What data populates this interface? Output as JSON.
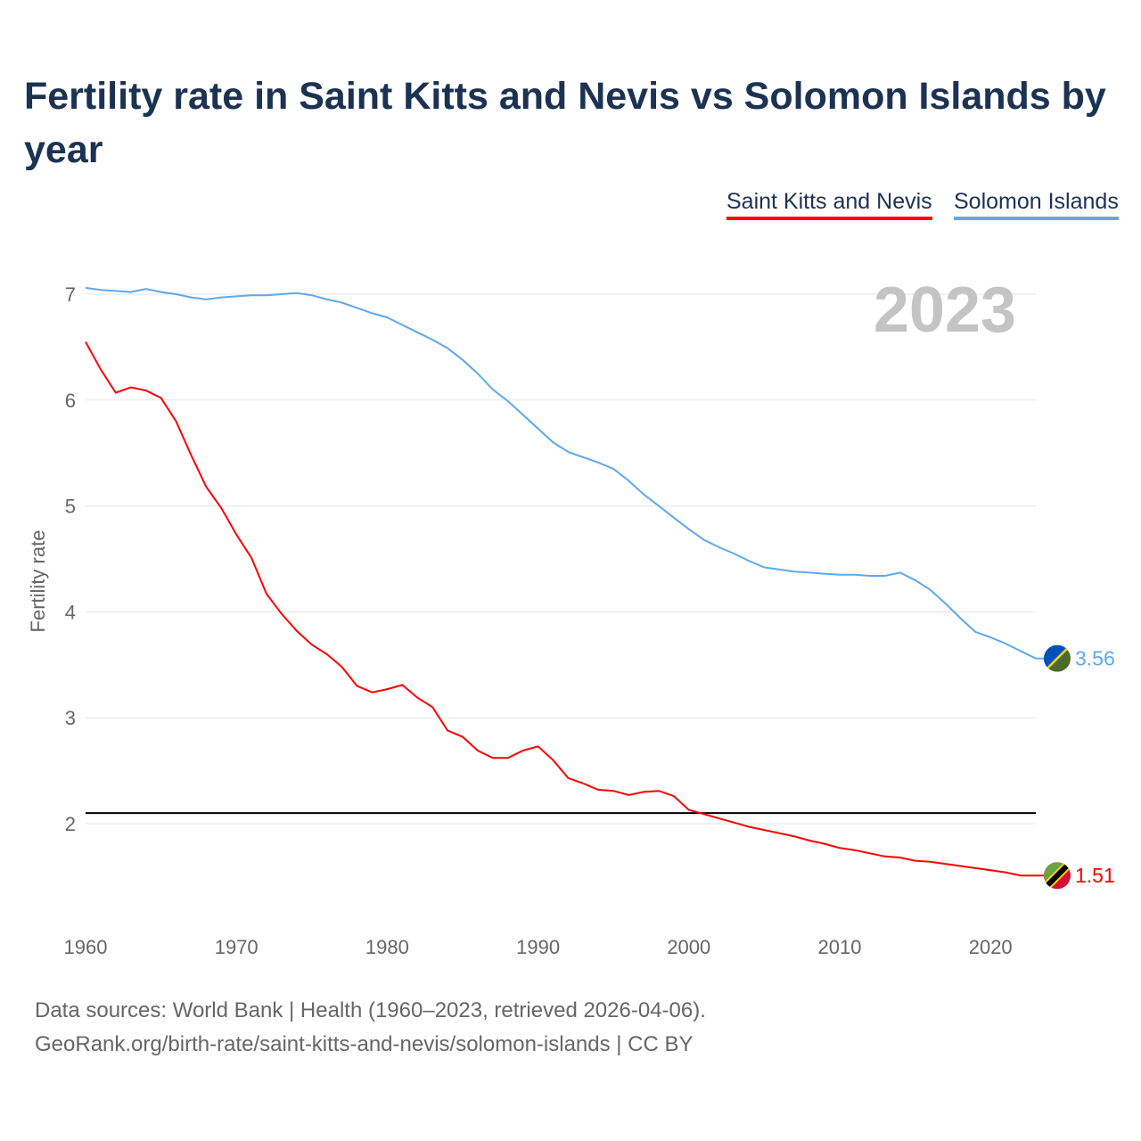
{
  "chart_data": {
    "type": "line",
    "title": "Fertility rate in Saint Kitts and Nevis vs Solomon Islands by year",
    "xlabel": "",
    "ylabel": "Fertility rate",
    "xlim": [
      1960,
      2023
    ],
    "ylim": [
      1.3,
      7.1
    ],
    "x_ticks": [
      1960,
      1970,
      1980,
      1990,
      2000,
      2010,
      2020
    ],
    "y_ticks": [
      2,
      3,
      4,
      5,
      6,
      7
    ],
    "grid": true,
    "legend_position": "top-right",
    "year_label": "2023",
    "reference_line": 2.1,
    "x": [
      1960,
      1961,
      1962,
      1963,
      1964,
      1965,
      1966,
      1967,
      1968,
      1969,
      1970,
      1971,
      1972,
      1973,
      1974,
      1975,
      1976,
      1977,
      1978,
      1979,
      1980,
      1981,
      1982,
      1983,
      1984,
      1985,
      1986,
      1987,
      1988,
      1989,
      1990,
      1991,
      1992,
      1993,
      1994,
      1995,
      1996,
      1997,
      1998,
      1999,
      2000,
      2001,
      2002,
      2003,
      2004,
      2005,
      2006,
      2007,
      2008,
      2009,
      2010,
      2011,
      2012,
      2013,
      2014,
      2015,
      2016,
      2017,
      2018,
      2019,
      2020,
      2021,
      2022,
      2023
    ],
    "series": [
      {
        "name": "Saint Kitts and Nevis",
        "color": "#ff0000",
        "end_label": "1.51",
        "values": [
          6.55,
          6.29,
          6.07,
          6.12,
          6.09,
          6.02,
          5.8,
          5.48,
          5.18,
          4.98,
          4.73,
          4.51,
          4.17,
          3.98,
          3.82,
          3.69,
          3.6,
          3.48,
          3.3,
          3.24,
          3.27,
          3.31,
          3.19,
          3.1,
          2.88,
          2.82,
          2.69,
          2.62,
          2.62,
          2.69,
          2.73,
          2.6,
          2.43,
          2.38,
          2.32,
          2.31,
          2.27,
          2.3,
          2.31,
          2.26,
          2.13,
          2.09,
          2.05,
          2.01,
          1.97,
          1.94,
          1.91,
          1.88,
          1.84,
          1.81,
          1.77,
          1.75,
          1.72,
          1.69,
          1.68,
          1.65,
          1.64,
          1.62,
          1.6,
          1.58,
          1.56,
          1.54,
          1.51,
          1.51
        ]
      },
      {
        "name": "Solomon Islands",
        "color": "#5ea8ee",
        "end_label": "3.56",
        "values": [
          7.06,
          7.04,
          7.03,
          7.02,
          7.05,
          7.02,
          7.0,
          6.97,
          6.95,
          6.97,
          6.98,
          6.99,
          6.99,
          7.0,
          7.01,
          6.99,
          6.95,
          6.92,
          6.87,
          6.82,
          6.78,
          6.71,
          6.64,
          6.57,
          6.49,
          6.38,
          6.25,
          6.1,
          5.99,
          5.86,
          5.73,
          5.6,
          5.51,
          5.46,
          5.41,
          5.35,
          5.24,
          5.11,
          5.0,
          4.89,
          4.78,
          4.68,
          4.61,
          4.55,
          4.48,
          4.42,
          4.4,
          4.38,
          4.37,
          4.36,
          4.35,
          4.35,
          4.34,
          4.34,
          4.37,
          4.3,
          4.21,
          4.08,
          3.94,
          3.81,
          3.76,
          3.7,
          3.63,
          3.56
        ]
      }
    ]
  },
  "footer": {
    "line1": "Data sources: World Bank | Health (1960–2023, retrieved 2026-04-06).",
    "line2": "GeoRank.org/birth-rate/saint-kitts-and-nevis/solomon-islands | CC BY"
  }
}
